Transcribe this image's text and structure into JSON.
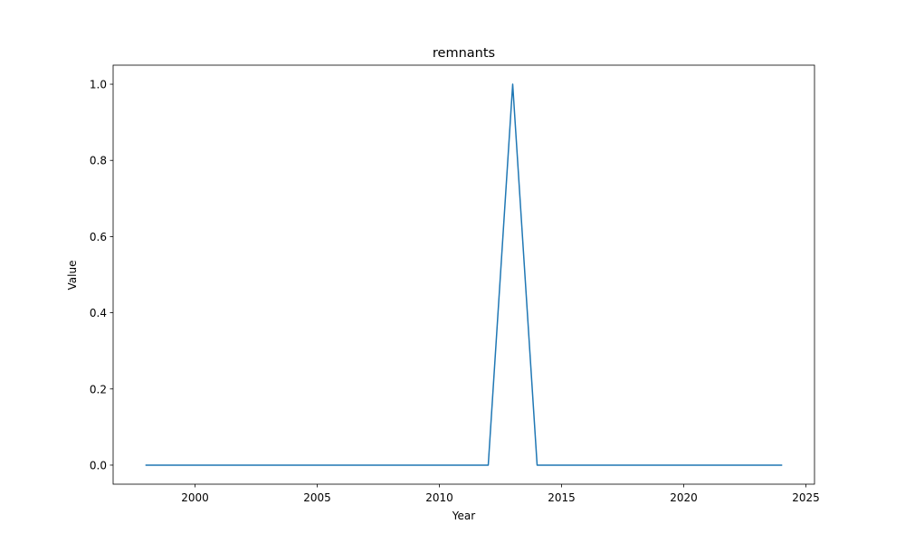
{
  "chart_data": {
    "type": "line",
    "title": "remnants",
    "xlabel": "Year",
    "ylabel": "Value",
    "xlim": [
      1996.65,
      2025.35
    ],
    "ylim": [
      -0.05,
      1.05
    ],
    "xticks": [
      2000,
      2005,
      2010,
      2015,
      2020,
      2025
    ],
    "yticks": [
      0.0,
      0.2,
      0.4,
      0.6,
      0.8,
      1.0
    ],
    "xtick_labels": [
      "2000",
      "2005",
      "2010",
      "2015",
      "2020",
      "2025"
    ],
    "ytick_labels": [
      "0.0",
      "0.2",
      "0.4",
      "0.6",
      "0.8",
      "1.0"
    ],
    "grid": false,
    "series": [
      {
        "color": "#1f77b4",
        "x": [
          1998,
          1999,
          2000,
          2001,
          2002,
          2003,
          2004,
          2005,
          2006,
          2007,
          2008,
          2009,
          2010,
          2011,
          2012,
          2013,
          2014,
          2015,
          2016,
          2017,
          2018,
          2019,
          2020,
          2021,
          2022,
          2023,
          2024
        ],
        "values": [
          0,
          0,
          0,
          0,
          0,
          0,
          0,
          0,
          0,
          0,
          0,
          0,
          0,
          0,
          0,
          1,
          0,
          0,
          0,
          0,
          0,
          0,
          0,
          0,
          0,
          0,
          0
        ]
      }
    ]
  }
}
